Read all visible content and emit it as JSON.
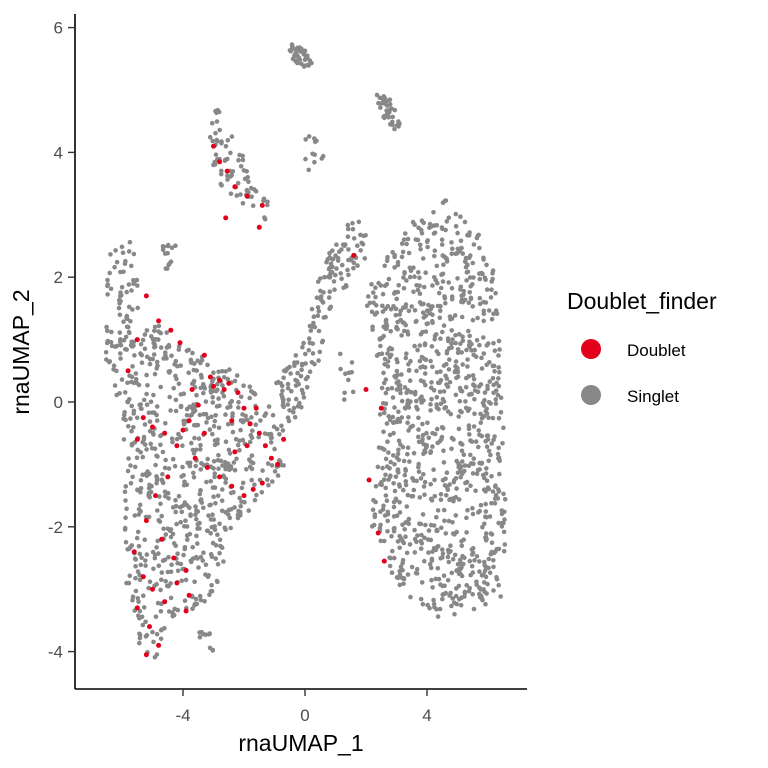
{
  "chart_data": {
    "type": "scatter",
    "xlabel": "rnaUMAP_1",
    "ylabel": "rnaUMAP_2",
    "xlim": [
      -7.5,
      7.2
    ],
    "ylim": [
      -4.6,
      6.25
    ],
    "x_ticks": [
      -4,
      0,
      4
    ],
    "y_ticks": [
      -4,
      -2,
      0,
      2,
      4,
      6
    ],
    "grid": false,
    "legend": {
      "title": "Doublet_finder",
      "placement": "right"
    },
    "series": [
      {
        "name": "Doublet",
        "color": "#e3001b",
        "points": [
          [
            -3.0,
            4.1
          ],
          [
            -2.8,
            3.85
          ],
          [
            -2.55,
            3.7
          ],
          [
            -2.3,
            3.45
          ],
          [
            -1.9,
            3.3
          ],
          [
            -1.4,
            3.15
          ],
          [
            -1.5,
            2.8
          ],
          [
            -2.6,
            2.95
          ],
          [
            1.6,
            2.35
          ],
          [
            -5.2,
            1.7
          ],
          [
            -4.8,
            1.3
          ],
          [
            -4.4,
            1.15
          ],
          [
            -4.1,
            0.95
          ],
          [
            -3.3,
            0.75
          ],
          [
            -5.5,
            1.0
          ],
          [
            -5.8,
            0.5
          ],
          [
            -3.1,
            0.4
          ],
          [
            -3.0,
            0.25
          ],
          [
            -2.8,
            0.35
          ],
          [
            -2.65,
            0.2
          ],
          [
            -2.5,
            0.3
          ],
          [
            -2.2,
            0.15
          ],
          [
            -2.0,
            -0.1
          ],
          [
            -1.8,
            -0.35
          ],
          [
            -1.5,
            -0.5
          ],
          [
            -1.3,
            -0.7
          ],
          [
            -1.1,
            -0.9
          ],
          [
            -0.9,
            -1.0
          ],
          [
            -0.7,
            -0.6
          ],
          [
            -3.5,
            -0.05
          ],
          [
            -3.8,
            -0.3
          ],
          [
            -4.0,
            -0.45
          ],
          [
            -4.2,
            -0.7
          ],
          [
            -3.6,
            -0.9
          ],
          [
            -3.2,
            -1.05
          ],
          [
            -2.8,
            -1.2
          ],
          [
            -2.4,
            -1.35
          ],
          [
            -2.0,
            -1.5
          ],
          [
            -1.7,
            -1.4
          ],
          [
            -1.4,
            -1.3
          ],
          [
            -4.6,
            -0.5
          ],
          [
            -5.0,
            -0.4
          ],
          [
            -5.3,
            -0.25
          ],
          [
            -5.5,
            -0.6
          ],
          [
            -4.5,
            -1.2
          ],
          [
            -4.9,
            -1.5
          ],
          [
            -5.2,
            -1.9
          ],
          [
            -4.7,
            -2.2
          ],
          [
            -4.3,
            -2.5
          ],
          [
            -3.9,
            -2.7
          ],
          [
            -5.6,
            -2.4
          ],
          [
            -5.3,
            -2.8
          ],
          [
            -5.0,
            -3.0
          ],
          [
            -4.6,
            -3.2
          ],
          [
            -4.2,
            -2.9
          ],
          [
            -3.8,
            -3.1
          ],
          [
            -5.5,
            -3.3
          ],
          [
            -5.1,
            -3.6
          ],
          [
            -4.8,
            -3.9
          ],
          [
            -5.2,
            -4.05
          ],
          [
            -3.9,
            -3.35
          ],
          [
            -2.4,
            -0.3
          ],
          [
            -2.3,
            -0.8
          ],
          [
            -1.9,
            -0.7
          ],
          [
            -3.7,
            0.2
          ],
          [
            -1.6,
            -0.1
          ],
          [
            2.0,
            0.2
          ],
          [
            2.5,
            -0.1
          ],
          [
            2.1,
            -1.25
          ],
          [
            2.6,
            -2.55
          ],
          [
            2.4,
            -2.1
          ],
          [
            -3.3,
            -0.5
          ]
        ]
      },
      {
        "name": "Singlet",
        "color": "#888888",
        "clusters": [
          {
            "poly": [
              [
                -6.3,
                2.7
              ],
              [
                -5.6,
                2.6
              ],
              [
                -5.4,
                1.5
              ],
              [
                -4.6,
                1.2
              ],
              [
                -3.6,
                0.8
              ],
              [
                -1.8,
                0.4
              ],
              [
                -0.5,
                -0.5
              ],
              [
                -0.7,
                -1.1
              ],
              [
                -1.5,
                -1.5
              ],
              [
                -2.5,
                -2.2
              ],
              [
                -2.9,
                -3.1
              ],
              [
                -4.3,
                -3.5
              ],
              [
                -4.9,
                -4.1
              ],
              [
                -5.5,
                -3.9
              ],
              [
                -5.9,
                -2.8
              ],
              [
                -5.9,
                -1.6
              ],
              [
                -6.0,
                -0.2
              ],
              [
                -6.6,
                0.7
              ],
              [
                -6.5,
                2.0
              ]
            ],
            "n": 780
          },
          {
            "poly": [
              [
                -4.7,
                2.6
              ],
              [
                -4.2,
                2.5
              ],
              [
                -4.2,
                2.2
              ],
              [
                -4.7,
                2.1
              ]
            ],
            "n": 14
          },
          {
            "poly": [
              [
                -3.2,
                4.8
              ],
              [
                -2.7,
                4.7
              ],
              [
                -1.6,
                3.5
              ],
              [
                -1.1,
                3.2
              ],
              [
                -1.3,
                2.9
              ],
              [
                -2.2,
                3.2
              ],
              [
                -3.0,
                3.6
              ]
            ],
            "n": 70
          },
          {
            "poly": [
              [
                -0.6,
                5.75
              ],
              [
                -0.1,
                5.7
              ],
              [
                0.3,
                5.45
              ],
              [
                0.2,
                5.3
              ],
              [
                -0.4,
                5.45
              ]
            ],
            "n": 40
          },
          {
            "poly": [
              [
                2.3,
                4.95
              ],
              [
                2.8,
                4.9
              ],
              [
                3.2,
                4.4
              ],
              [
                3.0,
                4.3
              ],
              [
                2.5,
                4.6
              ]
            ],
            "n": 34
          },
          {
            "poly": [
              [
                -3.5,
                -3.6
              ],
              [
                -3.1,
                -3.7
              ],
              [
                -3.0,
                -4.0
              ],
              [
                -3.4,
                -4.0
              ]
            ],
            "n": 10
          },
          {
            "poly": [
              [
                -1.0,
                0.3
              ],
              [
                0.0,
                1.0
              ],
              [
                0.5,
                2.1
              ],
              [
                1.2,
                2.8
              ],
              [
                2.0,
                2.95
              ],
              [
                2.2,
                2.5
              ],
              [
                1.7,
                2.0
              ],
              [
                0.9,
                1.6
              ],
              [
                0.3,
                0.3
              ],
              [
                -0.4,
                -0.6
              ]
            ],
            "n": 160
          },
          {
            "poly": [
              [
                2.2,
                2.0
              ],
              [
                3.5,
                2.9
              ],
              [
                4.6,
                3.25
              ],
              [
                5.5,
                2.9
              ],
              [
                6.2,
                2.2
              ],
              [
                6.5,
                0.0
              ],
              [
                6.6,
                -2.2
              ],
              [
                6.4,
                -3.2
              ],
              [
                5.0,
                -3.4
              ],
              [
                4.2,
                -3.5
              ],
              [
                3.0,
                -2.9
              ],
              [
                2.1,
                -2.0
              ],
              [
                2.4,
                -0.8
              ],
              [
                2.4,
                0.5
              ],
              [
                2.0,
                1.6
              ]
            ],
            "n": 1050
          },
          {
            "poly": [
              [
                -0.2,
                4.3
              ],
              [
                0.6,
                4.2
              ],
              [
                0.9,
                3.6
              ],
              [
                0.0,
                3.6
              ]
            ],
            "n": 12
          },
          {
            "poly": [
              [
                1.0,
                0.8
              ],
              [
                1.5,
                0.8
              ],
              [
                1.7,
                0.1
              ],
              [
                1.2,
                0.0
              ]
            ],
            "n": 10
          }
        ]
      }
    ]
  }
}
